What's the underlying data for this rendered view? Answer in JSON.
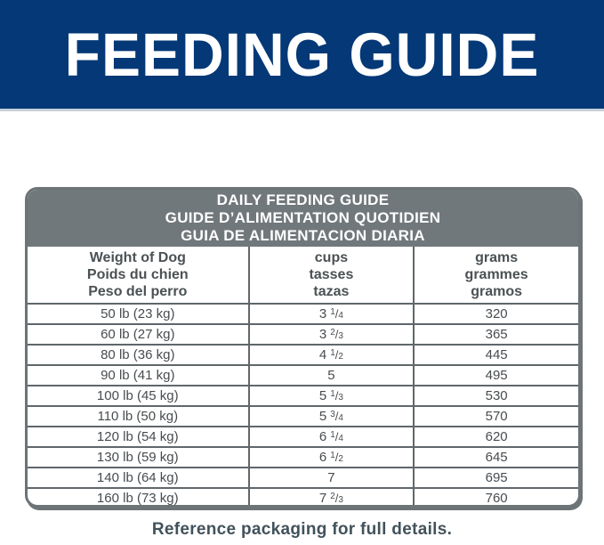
{
  "banner": {
    "title": "FEEDING GUIDE",
    "bg_color": "#043876",
    "text_color": "#ffffff"
  },
  "table": {
    "title_lines": [
      "DAILY FEEDING GUIDE",
      "GUIDE D’ALIMENTATION QUOTIDIEN",
      "GUIA DE ALIMENTACION DIARIA"
    ],
    "columns": [
      {
        "lines": [
          "Weight of Dog",
          "Poids du chien",
          "Peso del perro"
        ]
      },
      {
        "lines": [
          "cups",
          "tasses",
          "tazas"
        ]
      },
      {
        "lines": [
          "grams",
          "grammes",
          "gramos"
        ]
      }
    ],
    "rows": [
      {
        "weight": "50 lb (23 kg)",
        "cups_whole": "3",
        "cups_num": "1",
        "cups_den": "4",
        "grams": "320"
      },
      {
        "weight": "60 lb (27 kg)",
        "cups_whole": "3",
        "cups_num": "2",
        "cups_den": "3",
        "grams": "365"
      },
      {
        "weight": "80 lb (36 kg)",
        "cups_whole": "4",
        "cups_num": "1",
        "cups_den": "2",
        "grams": "445"
      },
      {
        "weight": "90 lb (41 kg)",
        "cups_whole": "5",
        "cups_num": "",
        "cups_den": "",
        "grams": "495"
      },
      {
        "weight": "100 lb (45 kg)",
        "cups_whole": "5",
        "cups_num": "1",
        "cups_den": "3",
        "grams": "530"
      },
      {
        "weight": "110 lb (50 kg)",
        "cups_whole": "5",
        "cups_num": "3",
        "cups_den": "4",
        "grams": "570"
      },
      {
        "weight": "120 lb (54 kg)",
        "cups_whole": "6",
        "cups_num": "1",
        "cups_den": "4",
        "grams": "620"
      },
      {
        "weight": "130 lb (59 kg)",
        "cups_whole": "6",
        "cups_num": "1",
        "cups_den": "2",
        "grams": "645"
      },
      {
        "weight": "140 lb (64 kg)",
        "cups_whole": "7",
        "cups_num": "",
        "cups_den": "",
        "grams": "695"
      },
      {
        "weight": "160 lb (73 kg)",
        "cups_whole": "7",
        "cups_num": "2",
        "cups_den": "3",
        "grams": "760"
      }
    ],
    "header_bg": "#71787b",
    "border_color": "#6d7478",
    "line_color": "#60676a"
  },
  "footer": {
    "note": "Reference packaging for full details."
  }
}
